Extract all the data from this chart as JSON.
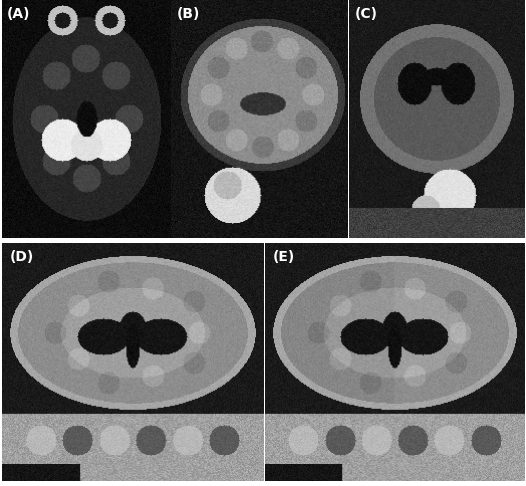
{
  "figure_width": 5.26,
  "figure_height": 4.86,
  "dpi": 100,
  "background_color": "#ffffff",
  "panels": [
    "A",
    "B",
    "C",
    "D",
    "E"
  ],
  "label_color": "#ffffff",
  "label_fontsize": 10,
  "label_fontweight": "bold",
  "panels_pos": {
    "A": [
      0.003,
      0.51,
      0.32,
      0.49
    ],
    "B": [
      0.326,
      0.51,
      0.335,
      0.49
    ],
    "C": [
      0.664,
      0.51,
      0.333,
      0.49
    ],
    "D": [
      0.003,
      0.01,
      0.498,
      0.49
    ],
    "E": [
      0.504,
      0.01,
      0.493,
      0.49
    ]
  }
}
